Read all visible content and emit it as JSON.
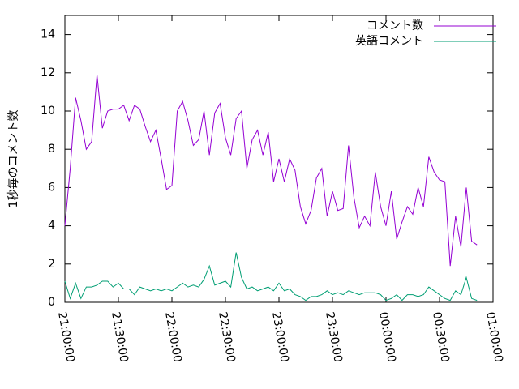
{
  "chart_data": {
    "type": "line",
    "ylabel": "1秒毎のコメント数",
    "x": [
      "21:00:00",
      "21:03:00",
      "21:06:00",
      "21:09:00",
      "21:12:00",
      "21:15:00",
      "21:18:00",
      "21:21:00",
      "21:24:00",
      "21:27:00",
      "21:30:00",
      "21:33:00",
      "21:36:00",
      "21:39:00",
      "21:42:00",
      "21:45:00",
      "21:48:00",
      "21:51:00",
      "21:54:00",
      "21:57:00",
      "22:00:00",
      "22:03:00",
      "22:06:00",
      "22:09:00",
      "22:12:00",
      "22:15:00",
      "22:18:00",
      "22:21:00",
      "22:24:00",
      "22:27:00",
      "22:30:00",
      "22:33:00",
      "22:36:00",
      "22:39:00",
      "22:42:00",
      "22:45:00",
      "22:48:00",
      "22:51:00",
      "22:54:00",
      "22:57:00",
      "23:00:00",
      "23:03:00",
      "23:06:00",
      "23:09:00",
      "23:12:00",
      "23:15:00",
      "23:18:00",
      "23:21:00",
      "23:24:00",
      "23:27:00",
      "23:30:00",
      "23:33:00",
      "23:36:00",
      "23:39:00",
      "23:42:00",
      "23:45:00",
      "23:48:00",
      "23:51:00",
      "23:54:00",
      "23:57:00",
      "00:00:00",
      "00:03:00",
      "00:06:00",
      "00:09:00",
      "00:12:00",
      "00:15:00",
      "00:18:00",
      "00:21:00",
      "00:24:00",
      "00:27:00",
      "00:30:00",
      "00:33:00",
      "00:36:00",
      "00:39:00",
      "00:42:00",
      "00:45:00",
      "00:48:00",
      "00:51:00"
    ],
    "series": [
      {
        "name": "コメント数",
        "color": "#9400d3",
        "values": [
          4.0,
          7.0,
          10.7,
          9.5,
          8.0,
          8.4,
          11.9,
          9.1,
          10.0,
          10.1,
          10.1,
          10.3,
          9.5,
          10.3,
          10.1,
          9.2,
          8.4,
          9.0,
          7.5,
          5.9,
          6.1,
          10.0,
          10.5,
          9.5,
          8.2,
          8.5,
          10.0,
          7.7,
          9.9,
          10.4,
          8.6,
          7.7,
          9.6,
          10.0,
          7.0,
          8.5,
          9.0,
          7.7,
          8.9,
          6.3,
          7.5,
          6.3,
          7.5,
          6.9,
          5.0,
          4.1,
          4.8,
          6.5,
          7.0,
          4.5,
          5.8,
          4.8,
          4.9,
          8.2,
          5.5,
          3.9,
          4.5,
          4.0,
          6.8,
          5.0,
          4.0,
          5.8,
          3.3,
          4.2,
          5.0,
          4.6,
          6.0,
          5.0,
          7.6,
          6.8,
          6.4,
          6.3,
          1.9,
          4.5,
          2.9,
          6.0,
          3.2,
          3.0
        ]
      },
      {
        "name": "英語コメント",
        "color": "#009e73",
        "values": [
          1.1,
          0.2,
          1.0,
          0.2,
          0.8,
          0.8,
          0.9,
          1.1,
          1.1,
          0.8,
          1.0,
          0.7,
          0.7,
          0.4,
          0.8,
          0.7,
          0.6,
          0.7,
          0.6,
          0.7,
          0.6,
          0.8,
          1.0,
          0.8,
          0.9,
          0.8,
          1.2,
          1.9,
          0.9,
          1.0,
          1.1,
          0.8,
          2.6,
          1.3,
          0.7,
          0.8,
          0.6,
          0.7,
          0.8,
          0.6,
          1.0,
          0.6,
          0.7,
          0.4,
          0.3,
          0.1,
          0.3,
          0.3,
          0.4,
          0.6,
          0.4,
          0.5,
          0.4,
          0.6,
          0.5,
          0.4,
          0.5,
          0.5,
          0.5,
          0.4,
          0.1,
          0.2,
          0.4,
          0.1,
          0.4,
          0.4,
          0.3,
          0.4,
          0.8,
          0.6,
          0.4,
          0.2,
          0.1,
          0.6,
          0.4,
          1.3,
          0.2,
          0.1
        ]
      }
    ],
    "xlim": [
      "21:00:00",
      "01:00:00"
    ],
    "xticks": [
      "21:00:00",
      "21:30:00",
      "22:00:00",
      "22:30:00",
      "23:00:00",
      "23:30:00",
      "00:00:00",
      "00:30:00",
      "01:00:00"
    ],
    "ylim": [
      0,
      15
    ],
    "yticks": [
      0,
      2,
      4,
      6,
      8,
      10,
      12,
      14
    ],
    "grid": false,
    "legend": "top-right"
  }
}
